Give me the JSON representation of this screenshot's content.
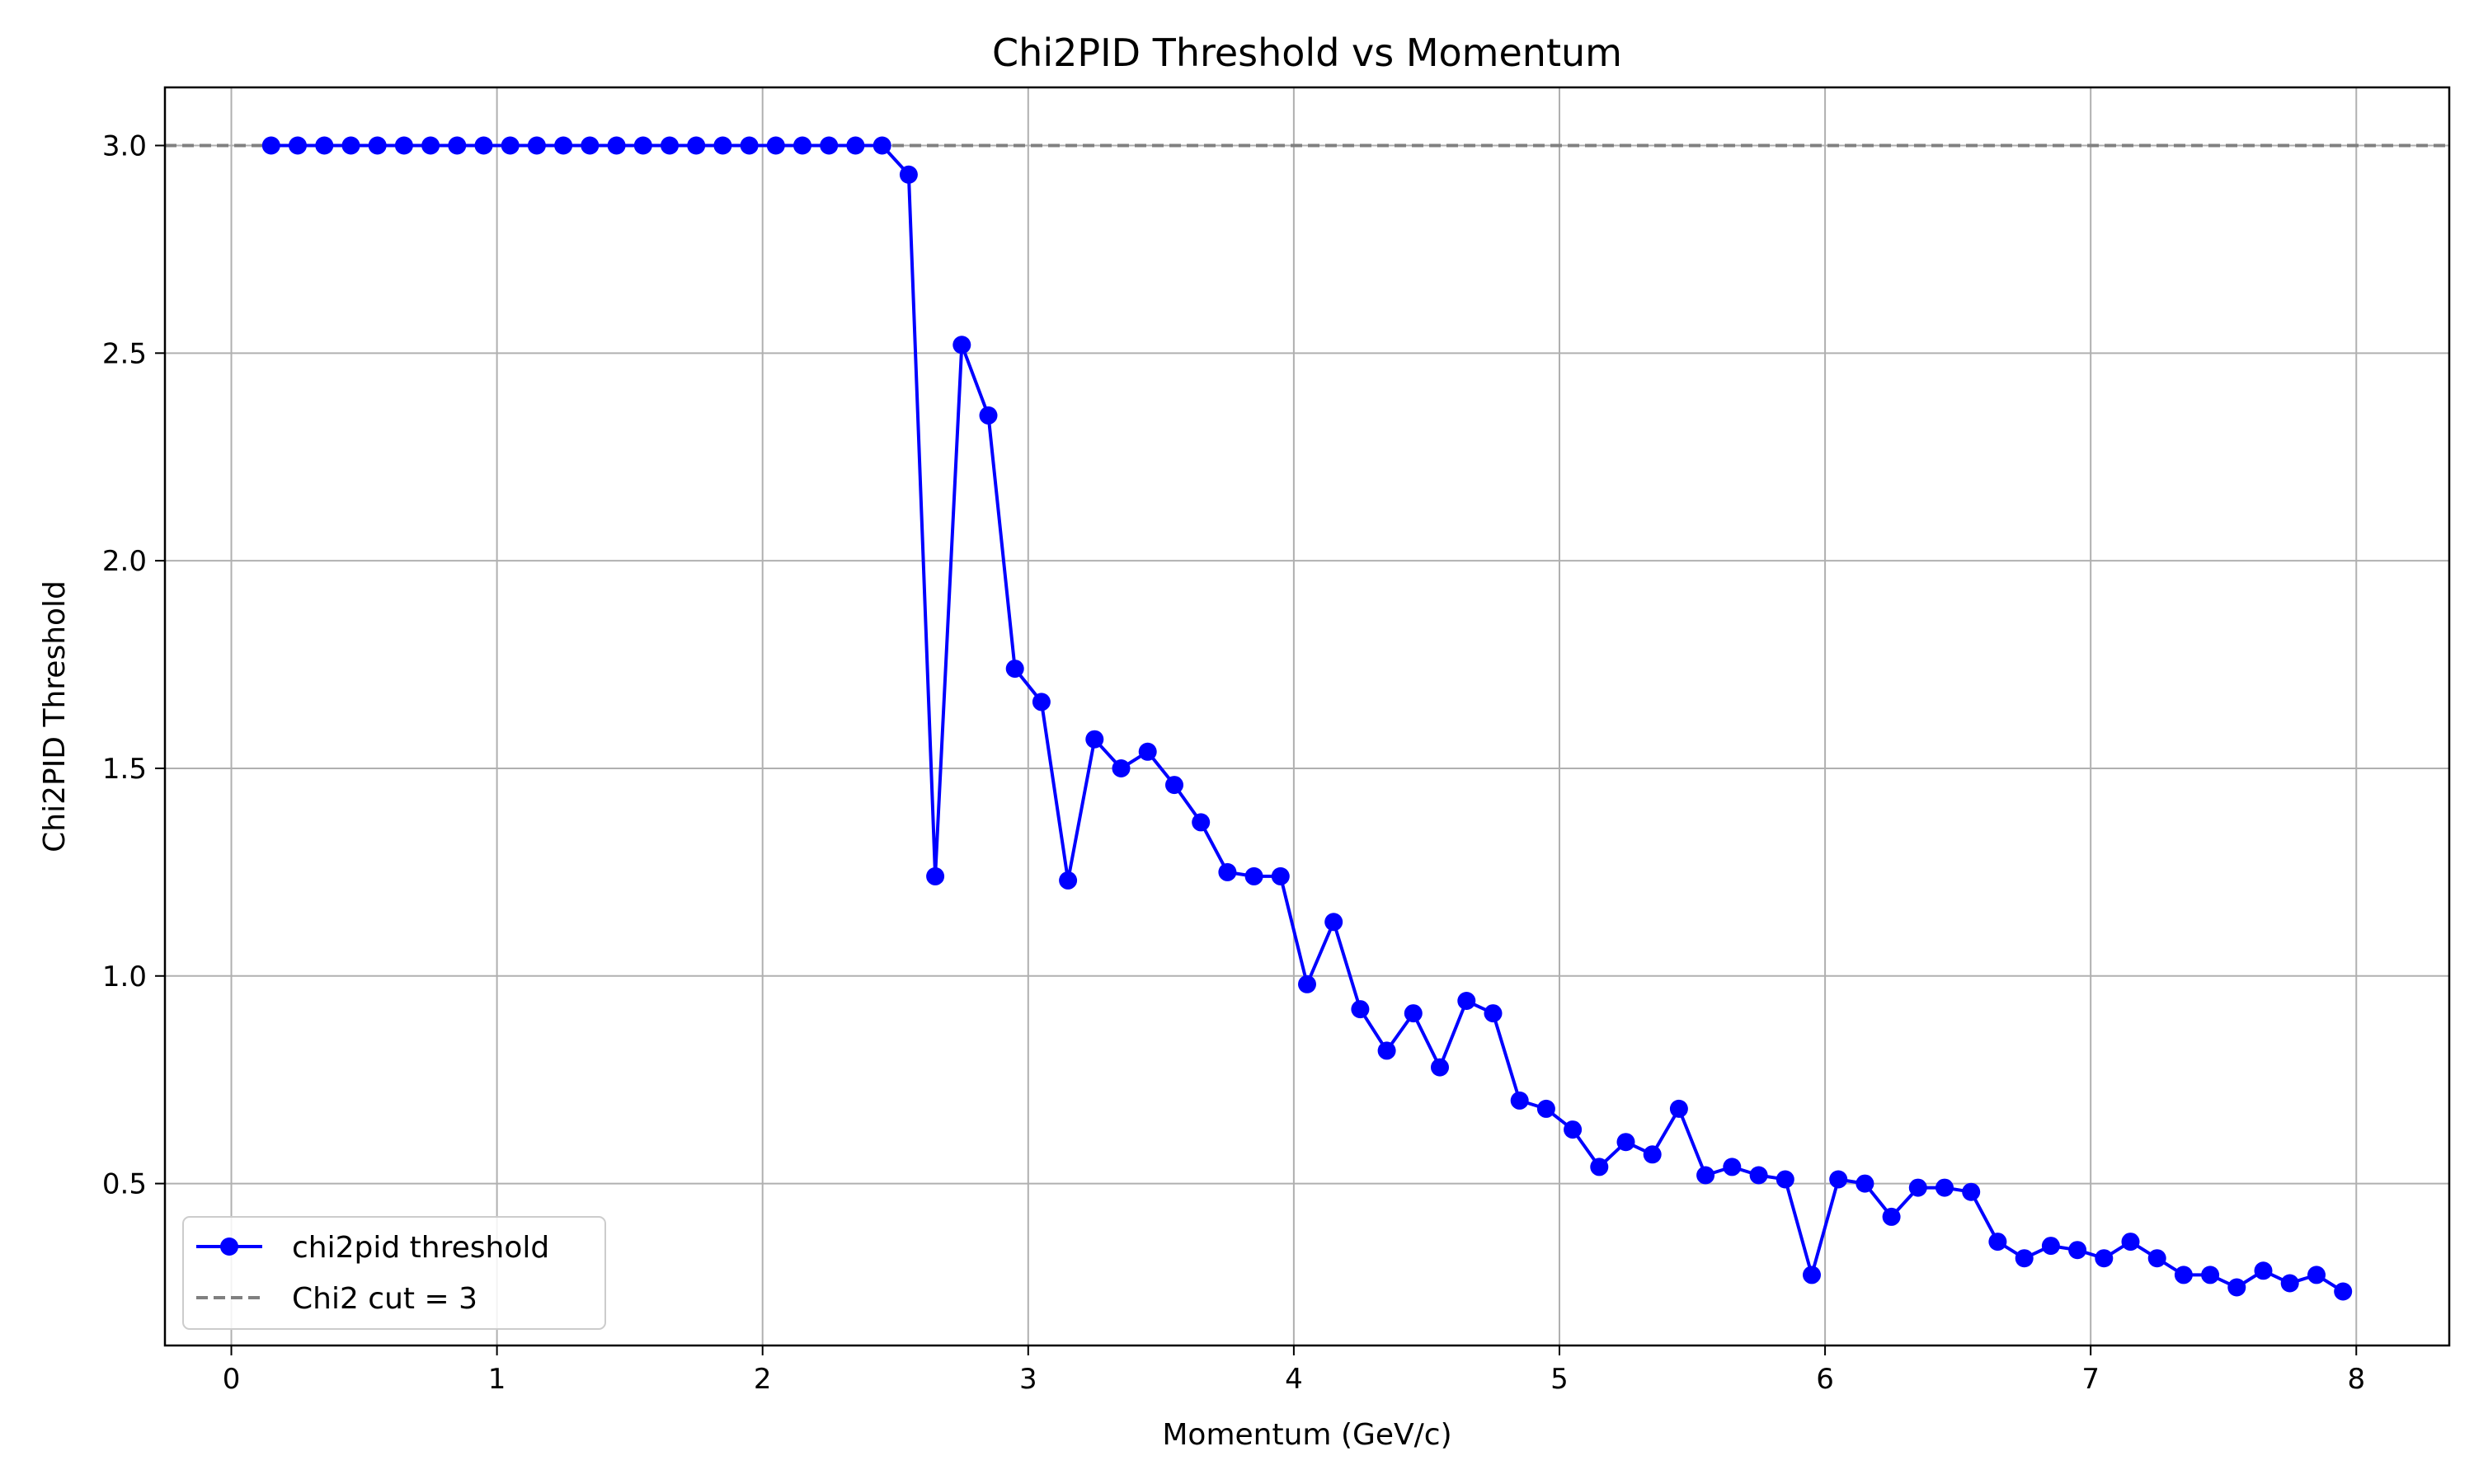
{
  "chart_data": {
    "type": "line",
    "title": "Chi2PID Threshold vs Momentum",
    "xlabel": "Momentum (GeV/c)",
    "ylabel": "Chi2PID Threshold",
    "xlim": [
      -0.25,
      8.35
    ],
    "ylim": [
      0.11,
      3.14
    ],
    "x_ticks": [
      0,
      1,
      2,
      3,
      4,
      5,
      6,
      7,
      8
    ],
    "x_tick_labels": [
      "0",
      "1",
      "2",
      "3",
      "4",
      "5",
      "6",
      "7",
      "8"
    ],
    "y_ticks": [
      0.5,
      1.0,
      1.5,
      2.0,
      2.5,
      3.0
    ],
    "y_tick_labels": [
      "0.5",
      "1.0",
      "1.5",
      "2.0",
      "2.5",
      "3.0"
    ],
    "grid": true,
    "legend_position": "lower-left",
    "series": [
      {
        "name": "chi2pid threshold",
        "color": "#0000ff",
        "marker": "circle",
        "x": [
          0.15,
          0.25,
          0.35,
          0.45,
          0.55,
          0.65,
          0.75,
          0.85,
          0.95,
          1.05,
          1.15,
          1.25,
          1.35,
          1.45,
          1.55,
          1.65,
          1.75,
          1.85,
          1.95,
          2.05,
          2.15,
          2.25,
          2.35,
          2.45,
          2.55,
          2.65,
          2.75,
          2.85,
          2.95,
          3.05,
          3.15,
          3.25,
          3.35,
          3.45,
          3.55,
          3.65,
          3.75,
          3.85,
          3.95,
          4.05,
          4.15,
          4.25,
          4.35,
          4.45,
          4.55,
          4.65,
          4.75,
          4.85,
          4.95,
          5.05,
          5.15,
          5.25,
          5.35,
          5.45,
          5.55,
          5.65,
          5.75,
          5.85,
          5.95,
          6.05,
          6.15,
          6.25,
          6.35,
          6.45,
          6.55,
          6.65,
          6.75,
          6.85,
          6.95,
          7.05,
          7.15,
          7.25,
          7.35,
          7.45,
          7.55,
          7.65,
          7.75,
          7.85,
          7.95
        ],
        "y": [
          3.0,
          3.0,
          3.0,
          3.0,
          3.0,
          3.0,
          3.0,
          3.0,
          3.0,
          3.0,
          3.0,
          3.0,
          3.0,
          3.0,
          3.0,
          3.0,
          3.0,
          3.0,
          3.0,
          3.0,
          3.0,
          3.0,
          3.0,
          3.0,
          2.93,
          1.24,
          2.52,
          2.35,
          1.74,
          1.66,
          1.23,
          1.57,
          1.5,
          1.54,
          1.46,
          1.37,
          1.25,
          1.24,
          1.24,
          0.98,
          1.13,
          0.92,
          0.82,
          0.91,
          0.78,
          0.94,
          0.91,
          0.7,
          0.68,
          0.63,
          0.54,
          0.6,
          0.57,
          0.68,
          0.52,
          0.54,
          0.52,
          0.51,
          0.28,
          0.51,
          0.5,
          0.42,
          0.49,
          0.49,
          0.48,
          0.36,
          0.32,
          0.35,
          0.34,
          0.32,
          0.36,
          0.32,
          0.28,
          0.28,
          0.25,
          0.29,
          0.26,
          0.28,
          0.24
        ]
      },
      {
        "name": "Chi2 cut = 3",
        "color": "#808080",
        "style": "dashed",
        "y_constant": 3.0
      }
    ]
  }
}
